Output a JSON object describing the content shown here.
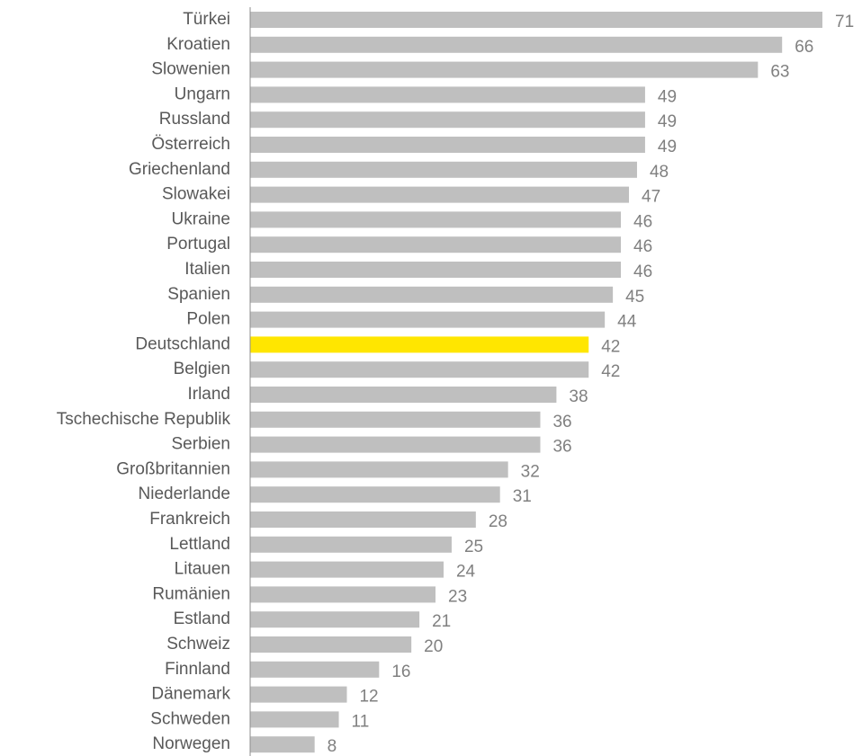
{
  "chart_data": {
    "type": "barh",
    "categories": [
      "Türkei",
      "Kroatien",
      "Slowenien",
      "Ungarn",
      "Russland",
      "Österreich",
      "Griechenland",
      "Slowakei",
      "Ukraine",
      "Portugal",
      "Italien",
      "Spanien",
      "Polen",
      "Deutschland",
      "Belgien",
      "Irland",
      "Tschechische Republik",
      "Serbien",
      "Großbritannien",
      "Niederlande",
      "Frankreich",
      "Lettland",
      "Litauen",
      "Rumänien",
      "Estland",
      "Schweiz",
      "Finnland",
      "Dänemark",
      "Schweden",
      "Norwegen"
    ],
    "values": [
      71,
      66,
      63,
      49,
      49,
      49,
      48,
      47,
      46,
      46,
      46,
      45,
      44,
      42,
      42,
      38,
      36,
      36,
      32,
      31,
      28,
      25,
      24,
      23,
      21,
      20,
      16,
      12,
      11,
      8
    ],
    "colors": [
      "#bfbfbf",
      "#bfbfbf",
      "#bfbfbf",
      "#bfbfbf",
      "#bfbfbf",
      "#bfbfbf",
      "#bfbfbf",
      "#bfbfbf",
      "#bfbfbf",
      "#bfbfbf",
      "#bfbfbf",
      "#bfbfbf",
      "#bfbfbf",
      "#ffe600",
      "#bfbfbf",
      "#bfbfbf",
      "#bfbfbf",
      "#bfbfbf",
      "#bfbfbf",
      "#bfbfbf",
      "#bfbfbf",
      "#bfbfbf",
      "#bfbfbf",
      "#bfbfbf",
      "#bfbfbf",
      "#bfbfbf",
      "#bfbfbf",
      "#bfbfbf",
      "#bfbfbf",
      "#bfbfbf"
    ],
    "xlim": [
      0,
      71
    ]
  }
}
